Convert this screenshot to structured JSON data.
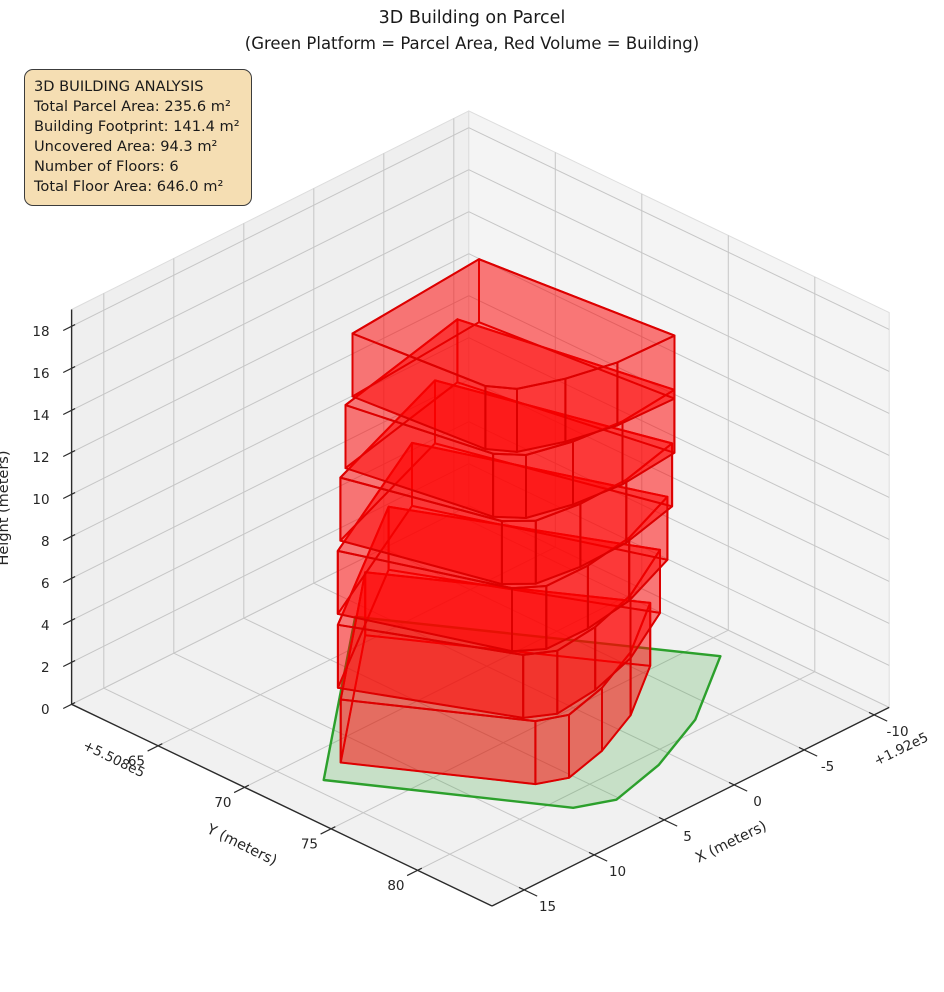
{
  "title": {
    "text": "3D Building on Parcel",
    "subtitle": "(Green Platform = Parcel Area, Red Volume = Building)"
  },
  "info_box": {
    "lines": [
      "3D BUILDING ANALYSIS",
      "Total Parcel Area: 235.6 m²",
      "Building Footprint: 141.4 m²",
      "Uncovered Area: 94.3 m²",
      "Number of Floors: 6",
      "Total Floor Area: 646.0 m²"
    ],
    "background": "#f5deb3",
    "border_color": "#3c3c3c"
  },
  "chart_data": {
    "type": "3d-building-plot",
    "stats": {
      "total_parcel_area_m2": 235.6,
      "building_footprint_m2": 141.4,
      "uncovered_area_m2": 94.3,
      "number_of_floors": 6,
      "total_floor_area_m2": 646.0
    },
    "axes": {
      "x": {
        "label": "X (meters)",
        "ticks": [
          -10,
          -5,
          0,
          5,
          10,
          15
        ],
        "offset_text": "+1.92e5",
        "lim": [
          -11.07,
          17.3
        ]
      },
      "y": {
        "label": "Y (meters)",
        "ticks": [
          65,
          70,
          75,
          80
        ],
        "offset_text": "+5.508e5",
        "lim": [
          60,
          84.3
        ]
      },
      "z": {
        "label": "Height (meters)",
        "ticks": [
          0,
          2,
          4,
          6,
          8,
          10,
          12,
          14,
          16,
          18
        ],
        "lim": [
          0,
          18.8
        ]
      }
    },
    "grid": true,
    "pane_colors": {
      "left": "#efefef",
      "right": "#f4f4f4",
      "floor": "#f1f1f1"
    },
    "grid_color": "#c6c6c6",
    "axis_line_color": "#2b2b2b",
    "tick_label_color": "#262626",
    "parcel": {
      "polygon": [
        [
          1.0,
          63.2
        ],
        [
          14.0,
          71.9
        ],
        [
          7.3,
          80.9
        ],
        [
          5.2,
          81.7
        ],
        [
          1.2,
          80.9
        ],
        [
          -3.4,
          79.3
        ],
        [
          -8.9,
          76.3
        ]
      ],
      "edge_color": "#2ca02c",
      "fill_color": "rgba(50,165,50,0.22)"
    },
    "building": {
      "edge_color": "#dd0000",
      "fill_color": "rgba(255,0,0,0.30)",
      "floor_height": 3,
      "floors": [
        {
          "z0": 0,
          "z1": 3,
          "polygon": [
            [
              1.99,
              64.58
            ],
            [
              12.13,
              71.37
            ],
            [
              6.9,
              78.39
            ],
            [
              5.26,
              79.01
            ],
            [
              2.14,
              78.39
            ],
            [
              -1.45,
              77.14
            ],
            [
              -5.74,
              74.8
            ]
          ]
        },
        {
          "z0": 3,
          "z1": 6,
          "polygon": [
            [
              1.0,
              65.13
            ],
            [
              11.38,
              70.6
            ],
            [
              7.09,
              77.84
            ],
            [
              5.59,
              78.6
            ],
            [
              2.54,
              78.32
            ],
            [
              -1.02,
              77.48
            ],
            [
              -5.35,
              75.68
            ]
          ]
        },
        {
          "z0": 6,
          "z1": 9,
          "polygon": [
            [
              0.12,
              65.77
            ],
            [
              10.58,
              69.95
            ],
            [
              7.21,
              77.29
            ],
            [
              5.85,
              78.17
            ],
            [
              2.91,
              78.2
            ],
            [
              -0.57,
              77.77
            ],
            [
              -4.89,
              76.48
            ]
          ]
        },
        {
          "z0": 9,
          "z1": 12,
          "polygon": [
            [
              -0.65,
              66.48
            ],
            [
              9.74,
              69.42
            ],
            [
              7.26,
              76.75
            ],
            [
              6.05,
              77.73
            ],
            [
              3.26,
              78.05
            ],
            [
              -0.1,
              77.98
            ],
            [
              -4.35,
              77.19
            ]
          ]
        },
        {
          "z0": 12,
          "z1": 15,
          "polygon": [
            [
              -1.3,
              67.25
            ],
            [
              8.87,
              69.01
            ],
            [
              7.25,
              76.23
            ],
            [
              6.2,
              77.28
            ],
            [
              3.57,
              77.87
            ],
            [
              0.37,
              78.14
            ],
            [
              -3.75,
              77.81
            ]
          ]
        },
        {
          "z0": 15,
          "z1": 18,
          "polygon": [
            [
              -1.84,
              68.06
            ],
            [
              8.0,
              68.71
            ],
            [
              7.18,
              75.73
            ],
            [
              6.28,
              76.83
            ],
            [
              3.85,
              77.66
            ],
            [
              0.84,
              78.23
            ],
            [
              -3.11,
              78.33
            ]
          ]
        }
      ]
    }
  }
}
